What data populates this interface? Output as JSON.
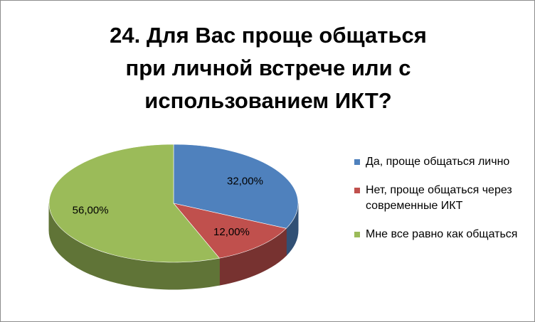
{
  "chart_data": {
    "type": "pie",
    "three_d": true,
    "title": "24. Для Вас проще общаться при личной встрече или с использованием ИКТ?",
    "categories": [
      "Да, проще общаться лично",
      "Нет, проще общаться через современные ИКТ",
      "Мне все равно как общаться"
    ],
    "values": [
      32,
      12,
      56
    ],
    "value_labels": [
      "32,00%",
      "12,00%",
      "56,00%"
    ],
    "colors": [
      "#4f81bd",
      "#c0504d",
      "#9bbb59"
    ],
    "legend": "right"
  }
}
